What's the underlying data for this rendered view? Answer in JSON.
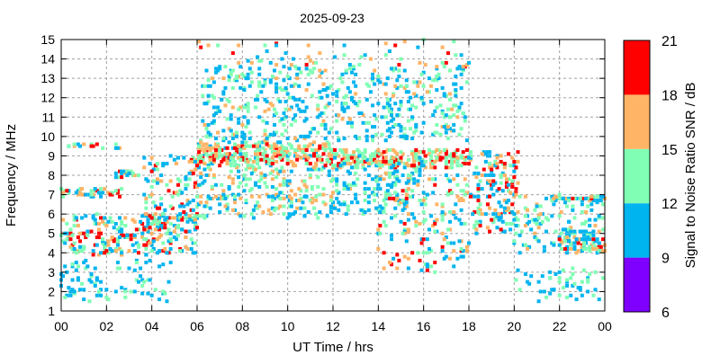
{
  "chart_data": {
    "type": "scatter",
    "title": "2025-09-23",
    "xlabel": "UT Time / hrs",
    "ylabel": "Frequency / MHz",
    "xlim": [
      0,
      24
    ],
    "ylim": [
      1,
      15
    ],
    "grid": true,
    "x_ticks": [
      "00",
      "02",
      "04",
      "06",
      "08",
      "10",
      "12",
      "14",
      "16",
      "18",
      "20",
      "22",
      "00"
    ],
    "x_tick_values": [
      0,
      2,
      4,
      6,
      8,
      10,
      12,
      14,
      16,
      18,
      20,
      22,
      24
    ],
    "y_ticks": [
      1,
      2,
      3,
      4,
      5,
      6,
      7,
      8,
      9,
      10,
      11,
      12,
      13,
      14,
      15
    ],
    "colorbar": {
      "label": "Signal to Noise Ratio SNR / dB",
      "ticks": [
        6,
        9,
        12,
        15,
        18,
        21
      ],
      "range": [
        6,
        21
      ],
      "bins": [
        {
          "from": 6,
          "to": 9,
          "color": "#8000ff"
        },
        {
          "from": 9,
          "to": 12,
          "color": "#00b4f0"
        },
        {
          "from": 12,
          "to": 15,
          "color": "#80ffb4"
        },
        {
          "from": 15,
          "to": 18,
          "color": "#ffb466"
        },
        {
          "from": 18,
          "to": 21,
          "color": "#ff0000"
        }
      ]
    },
    "point_clusters_note": "approximate density regions of observed echoes: time (hrs), frequency (MHz), snr (dB)",
    "clusters": [
      {
        "t": [
          0,
          6
        ],
        "f": [
          3.9,
          6.0
        ],
        "n": 260,
        "snr": [
          9,
          21
        ]
      },
      {
        "t": [
          0,
          5
        ],
        "f": [
          1.5,
          3.6
        ],
        "n": 90,
        "snr": [
          9,
          15
        ]
      },
      {
        "t": [
          0,
          2.7
        ],
        "f": [
          6.9,
          7.3
        ],
        "n": 45,
        "snr": [
          9,
          20
        ]
      },
      {
        "t": [
          0.2,
          2.6
        ],
        "f": [
          9.4,
          9.6
        ],
        "n": 16,
        "snr": [
          9,
          20
        ]
      },
      {
        "t": [
          2.4,
          3.4
        ],
        "f": [
          7.9,
          8.2
        ],
        "n": 20,
        "snr": [
          9,
          20
        ]
      },
      {
        "t": [
          3.5,
          6
        ],
        "f": [
          5,
          9
        ],
        "n": 130,
        "snr": [
          9,
          21
        ]
      },
      {
        "t": [
          6,
          12
        ],
        "f": [
          5.8,
          9.8
        ],
        "n": 320,
        "snr": [
          9,
          18
        ]
      },
      {
        "t": [
          6,
          12
        ],
        "f": [
          8.5,
          9.6
        ],
        "n": 220,
        "snr": [
          12,
          21
        ]
      },
      {
        "t": [
          12,
          18
        ],
        "f": [
          8.4,
          9.3
        ],
        "n": 220,
        "snr": [
          12,
          21
        ]
      },
      {
        "t": [
          6.2,
          18
        ],
        "f": [
          9.8,
          13.6
        ],
        "n": 520,
        "snr": [
          9,
          16
        ]
      },
      {
        "t": [
          6,
          18
        ],
        "f": [
          13.6,
          15
        ],
        "n": 60,
        "snr": [
          9,
          21
        ]
      },
      {
        "t": [
          12,
          16
        ],
        "f": [
          6,
          9
        ],
        "n": 160,
        "snr": [
          9,
          16
        ]
      },
      {
        "t": [
          14,
          18
        ],
        "f": [
          3,
          8
        ],
        "n": 170,
        "snr": [
          9,
          21
        ]
      },
      {
        "t": [
          18,
          20.2
        ],
        "f": [
          5,
          9.3
        ],
        "n": 160,
        "snr": [
          9,
          21
        ]
      },
      {
        "t": [
          20,
          24
        ],
        "f": [
          4,
          7
        ],
        "n": 130,
        "snr": [
          9,
          18
        ]
      },
      {
        "t": [
          22,
          24
        ],
        "f": [
          4,
          5.1
        ],
        "n": 80,
        "snr": [
          9,
          21
        ]
      },
      {
        "t": [
          20,
          24
        ],
        "f": [
          1.5,
          3.2
        ],
        "n": 55,
        "snr": [
          9,
          15
        ]
      },
      {
        "t": [
          21.5,
          24
        ],
        "f": [
          6.7,
          6.9
        ],
        "n": 40,
        "snr": [
          9,
          21
        ]
      }
    ]
  }
}
